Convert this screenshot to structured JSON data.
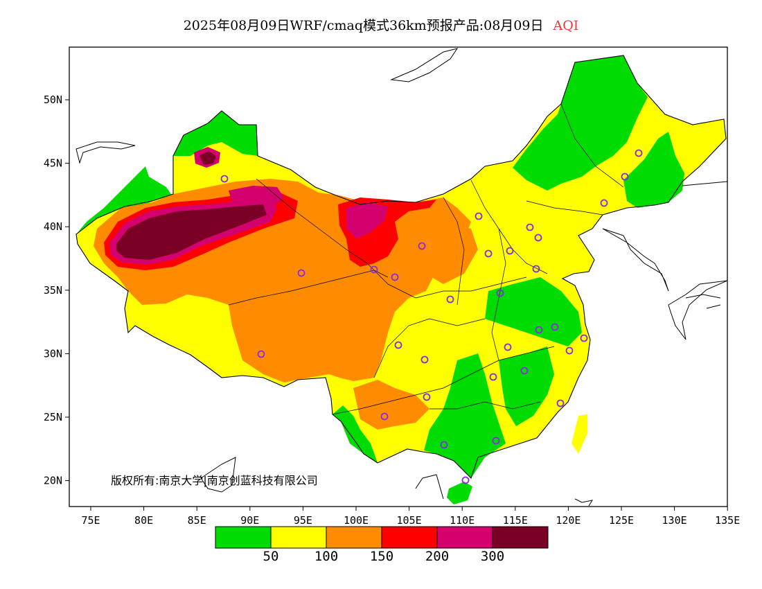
{
  "title": {
    "main": "2025年08月09日WRF/cmaq模式36km预报产品:08月09日",
    "variable": "AQI",
    "variable_color": "#e83a3a"
  },
  "axes": {
    "x_ticks": [
      "75E",
      "80E",
      "85E",
      "90E",
      "95E",
      "100E",
      "105E",
      "110E",
      "115E",
      "120E",
      "125E",
      "130E",
      "135E"
    ],
    "y_ticks": [
      "50N",
      "45N",
      "40N",
      "35N",
      "30N",
      "25N",
      "20N"
    ]
  },
  "colorbar": {
    "colors": [
      "#00dc00",
      "#ffff00",
      "#ff8c00",
      "#ff0000",
      "#d3006e",
      "#7a0026"
    ],
    "labels": [
      "50",
      "100",
      "150",
      "200",
      "300"
    ]
  },
  "copyright": "版权所有:南京大学|南京创蓝科技有限公司",
  "station_marker_color": "#8a2be2"
}
